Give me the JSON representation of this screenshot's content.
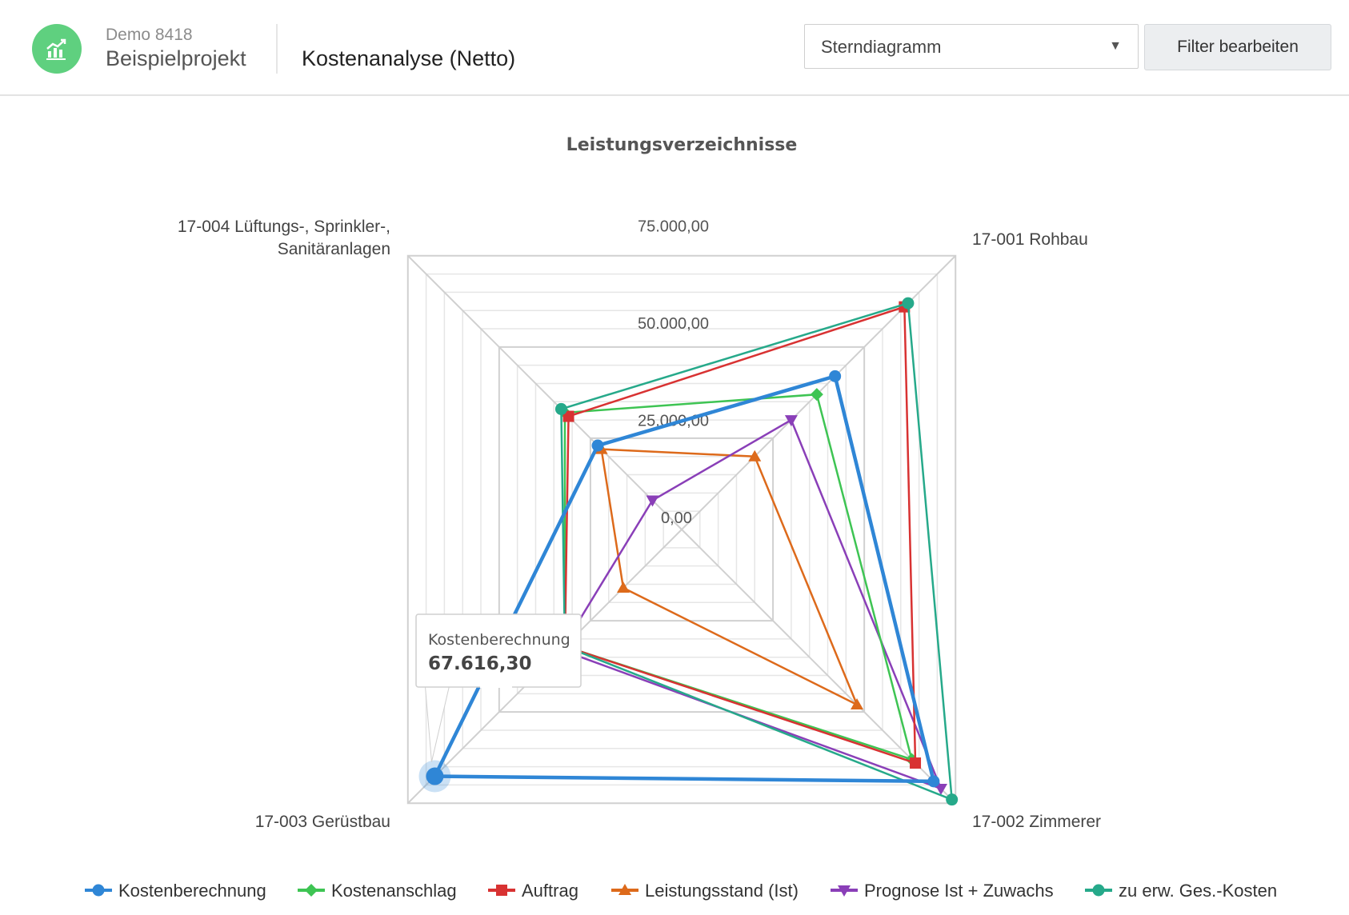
{
  "header": {
    "logo_icon": "chart-logo-icon",
    "logo_color": "#5fd07f",
    "project_id": "Demo 8418",
    "project_name": "Beispielprojekt",
    "page_title": "Kostenanalyse (Netto)",
    "chart_type_select": {
      "selected": "Sterndiagramm",
      "icon": "caret-down-icon"
    },
    "filter_button": "Filter bearbeiten"
  },
  "chart_data": {
    "type": "radar",
    "title": "Leistungsverzeichnisse",
    "categories": [
      "17-001 Rohbau",
      "17-002 Zimmerer",
      "17-003 Gerüstbau",
      "17-004 Lüftungs-, Sprinkler-, Sanitäranlagen"
    ],
    "axis_labels": [
      "0,00",
      "25.000,00",
      "50.000,00",
      "75.000,00"
    ],
    "rlim": [
      0,
      75000
    ],
    "grid": true,
    "legend_position": "bottom",
    "series": [
      {
        "name": "Kostenberechnung",
        "color": "#2f86d6",
        "marker": "circle",
        "values": [
          42000,
          69000,
          67616.3,
          23000
        ]
      },
      {
        "name": "Kostenanschlag",
        "color": "#3ec453",
        "marker": "diamond",
        "values": [
          37000,
          63000,
          32000,
          32000
        ]
      },
      {
        "name": "Auftrag",
        "color": "#d83232",
        "marker": "square",
        "values": [
          61000,
          64000,
          32000,
          31000
        ]
      },
      {
        "name": "Leistungsstand (Ist)",
        "color": "#dd6a1b",
        "marker": "triangle",
        "values": [
          20000,
          48000,
          16000,
          22000
        ]
      },
      {
        "name": "Prognose Ist + Zuwachs",
        "color": "#8a3fb8",
        "marker": "triangle-down",
        "values": [
          30000,
          71000,
          33000,
          8000
        ]
      },
      {
        "name": "zu erw. Ges.-Kosten",
        "color": "#26a98a",
        "marker": "circle",
        "values": [
          62000,
          74000,
          32000,
          33000
        ]
      }
    ],
    "tooltip": {
      "series": "Kostenberechnung",
      "value": "67.616,30",
      "category": "17-003 Gerüstbau"
    }
  }
}
